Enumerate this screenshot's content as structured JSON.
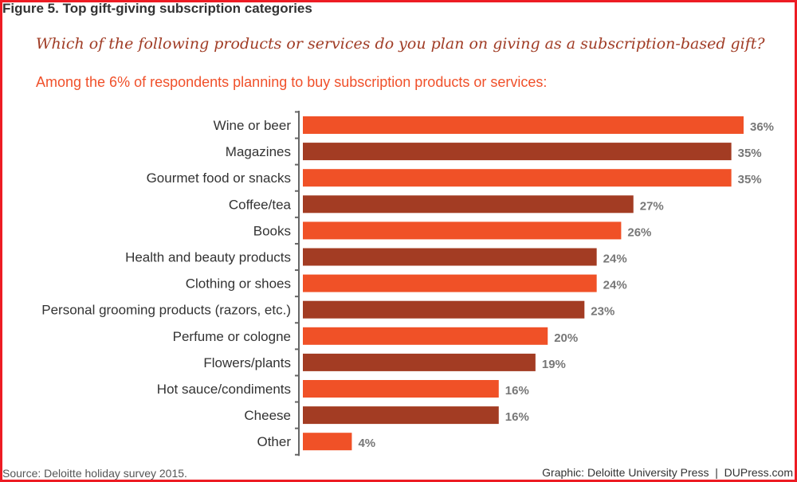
{
  "figure_title": "Figure 5. Top gift-giving subscription categories",
  "question": "Which of the following products or services do you plan on giving as a subscription-based gift?",
  "subtitle": "Among the 6% of respondents planning to buy subscription products or services:",
  "source": "Source: Deloitte holiday survey 2015.",
  "credit": "Graphic: Deloitte University Press  |  DUPress.com",
  "colors": {
    "light": "#f05127",
    "dark": "#a33c23",
    "label": "#777777",
    "border": "#ed1c24"
  },
  "chart_data": {
    "type": "bar",
    "orientation": "horizontal",
    "title": "Which of the following products or services do you plan on giving as a subscription-based gift?",
    "categories": [
      "Wine or beer",
      "Magazines",
      "Gourmet food or snacks",
      "Coffee/tea",
      "Books",
      "Health and beauty products",
      "Clothing or shoes",
      "Personal grooming products (razors, etc.)",
      "Perfume or cologne",
      "Flowers/plants",
      "Hot sauce/condiments",
      "Cheese",
      "Other"
    ],
    "values": [
      36,
      35,
      35,
      27,
      26,
      24,
      24,
      23,
      20,
      19,
      16,
      16,
      4
    ],
    "data_labels": [
      "36%",
      "35%",
      "35%",
      "27%",
      "26%",
      "24%",
      "24%",
      "23%",
      "20%",
      "19%",
      "16%",
      "16%",
      "4%"
    ],
    "unit": "%",
    "xlim": [
      0,
      36
    ],
    "grid": false,
    "legend": "none"
  }
}
